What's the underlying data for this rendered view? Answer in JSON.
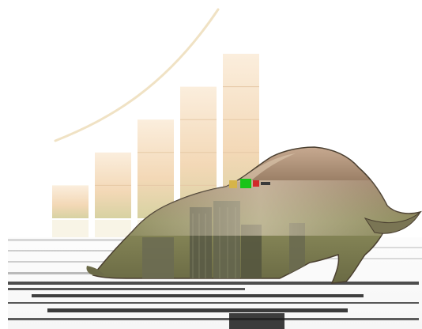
{
  "scene": {
    "subject": "bull",
    "background_color": "#ffffff",
    "bar_colors": [
      "#e9e3b6",
      "#f3d9b5",
      "#f6dcb8",
      "#f7d8b4",
      "#f6d2ac"
    ],
    "bar_top_color": "#fbeedd",
    "bar_bottom_color": "#d7d2a2",
    "trend_line_color": "#f2e2c6",
    "bull_body_color": "#8a8a5a",
    "bull_highlight_color": "#d7c7a6",
    "bull_shadow_color": "#3a382a",
    "building_color": "#5e5f4a",
    "reflection_color": "#2b2b2b",
    "accent_green": "#18c418",
    "accent_red": "#d12a2a"
  },
  "chart_data": {
    "type": "bar",
    "values": [
      1,
      2,
      3,
      4,
      5
    ]
  }
}
